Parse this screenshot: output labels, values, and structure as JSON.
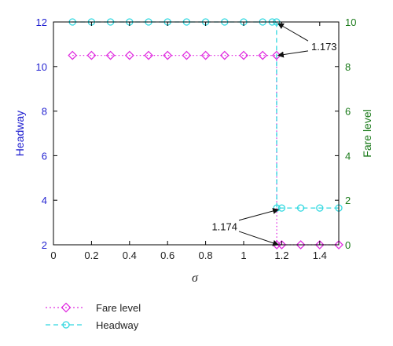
{
  "chart_data": {
    "type": "line",
    "xlabel": "σ",
    "ylabel_left": "Headway",
    "ylabel_right": "Fare level",
    "xlim": [
      0,
      1.5
    ],
    "ylim_left": [
      2,
      12
    ],
    "ylim_right": [
      0,
      10
    ],
    "x_ticks": [
      "0",
      "0.2",
      "0.4",
      "0.6",
      "0.8",
      "1",
      "1.2",
      "1.4"
    ],
    "x_tick_values": [
      0,
      0.2,
      0.4,
      0.6,
      0.8,
      1.0,
      1.2,
      1.4
    ],
    "left_ticks": [
      "2",
      "4",
      "6",
      "8",
      "10",
      "12"
    ],
    "left_tick_values": [
      2,
      4,
      6,
      8,
      10,
      12
    ],
    "right_ticks": [
      "0",
      "2",
      "4",
      "6",
      "8",
      "10"
    ],
    "right_tick_values": [
      0,
      2,
      4,
      6,
      8,
      10
    ],
    "grid": false,
    "legend_position": "bottom-left",
    "series": [
      {
        "name": "Fare level",
        "axis": "right",
        "color": "#e030e0",
        "marker": "diamond",
        "line_style": "dotted",
        "x": [
          0.1,
          0.2,
          0.3,
          0.4,
          0.5,
          0.6,
          0.7,
          0.8,
          0.9,
          1.0,
          1.1,
          1.173,
          1.174,
          1.2,
          1.3,
          1.4,
          1.5
        ],
        "y": [
          8.5,
          8.5,
          8.5,
          8.5,
          8.5,
          8.5,
          8.5,
          8.5,
          8.5,
          8.5,
          8.5,
          8.5,
          0,
          0,
          0,
          0,
          0
        ]
      },
      {
        "name": "Headway",
        "axis": "left",
        "color": "#30d8e0",
        "marker": "circle",
        "line_style": "dashed",
        "x": [
          0.1,
          0.2,
          0.3,
          0.4,
          0.5,
          0.6,
          0.7,
          0.8,
          0.9,
          1.0,
          1.1,
          1.15,
          1.173,
          1.174,
          1.2,
          1.3,
          1.4,
          1.5
        ],
        "y": [
          12,
          12,
          12,
          12,
          12,
          12,
          12,
          12,
          12,
          12,
          12,
          12,
          12,
          3.65,
          3.65,
          3.65,
          3.65,
          3.65
        ]
      }
    ],
    "annotations": [
      {
        "text": "1.173",
        "x": 1.173,
        "targets_left": [
          12,
          10.5
        ]
      },
      {
        "text": "1.174",
        "x": 1.174,
        "targets_left": [
          3.65,
          2
        ]
      }
    ]
  }
}
